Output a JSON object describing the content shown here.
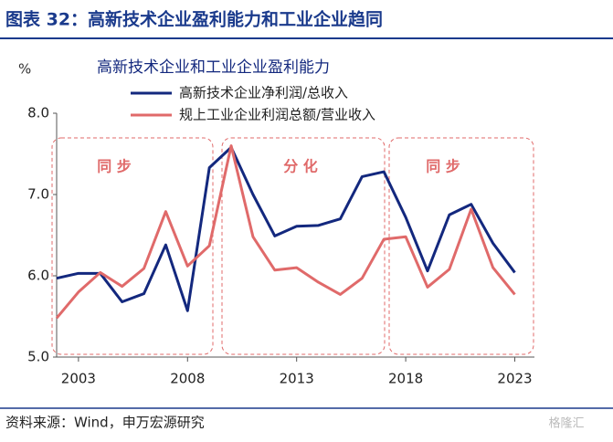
{
  "header": {
    "title": "图表 32：高新技术企业盈利能力和工业企业趋同"
  },
  "chart_data": {
    "type": "line",
    "title": "高新技术企业和工业企业盈利能力",
    "y_unit": "%",
    "x": [
      2002,
      2003,
      2004,
      2005,
      2006,
      2007,
      2008,
      2009,
      2010,
      2011,
      2012,
      2013,
      2014,
      2015,
      2016,
      2017,
      2018,
      2019,
      2020,
      2021,
      2022,
      2023
    ],
    "series": [
      {
        "name": "高新技术企业净利润/总收入",
        "color": "#13287e",
        "values": [
          5.97,
          6.03,
          6.03,
          5.68,
          5.78,
          6.38,
          5.57,
          7.33,
          7.58,
          7.0,
          6.49,
          6.61,
          6.62,
          6.7,
          7.22,
          7.28,
          6.72,
          6.06,
          6.75,
          6.88,
          6.4,
          6.04
        ]
      },
      {
        "name": "规上工业企业利润总额/营业收入",
        "color": "#e06a6a",
        "values": [
          5.48,
          5.8,
          6.04,
          5.87,
          6.09,
          6.79,
          6.12,
          6.37,
          7.6,
          6.48,
          6.07,
          6.1,
          5.92,
          5.77,
          5.97,
          6.45,
          6.48,
          5.86,
          6.08,
          6.82,
          6.1,
          5.77
        ]
      }
    ],
    "xlim": [
      2002,
      2023.9
    ],
    "xticks": [
      2003,
      2008,
      2013,
      2018,
      2023
    ],
    "ylim": [
      5,
      8
    ],
    "yticks": [
      {
        "value": 5,
        "label": "5.0"
      },
      {
        "value": 6,
        "label": "6.0"
      },
      {
        "value": 7,
        "label": "7.0"
      },
      {
        "value": 8,
        "label": "8.0"
      }
    ],
    "annotations": [
      "同 步",
      "分 化",
      "同 步"
    ]
  },
  "footer": {
    "source": "资料来源：Wind，申万宏源研究",
    "watermark": "格隆汇"
  }
}
